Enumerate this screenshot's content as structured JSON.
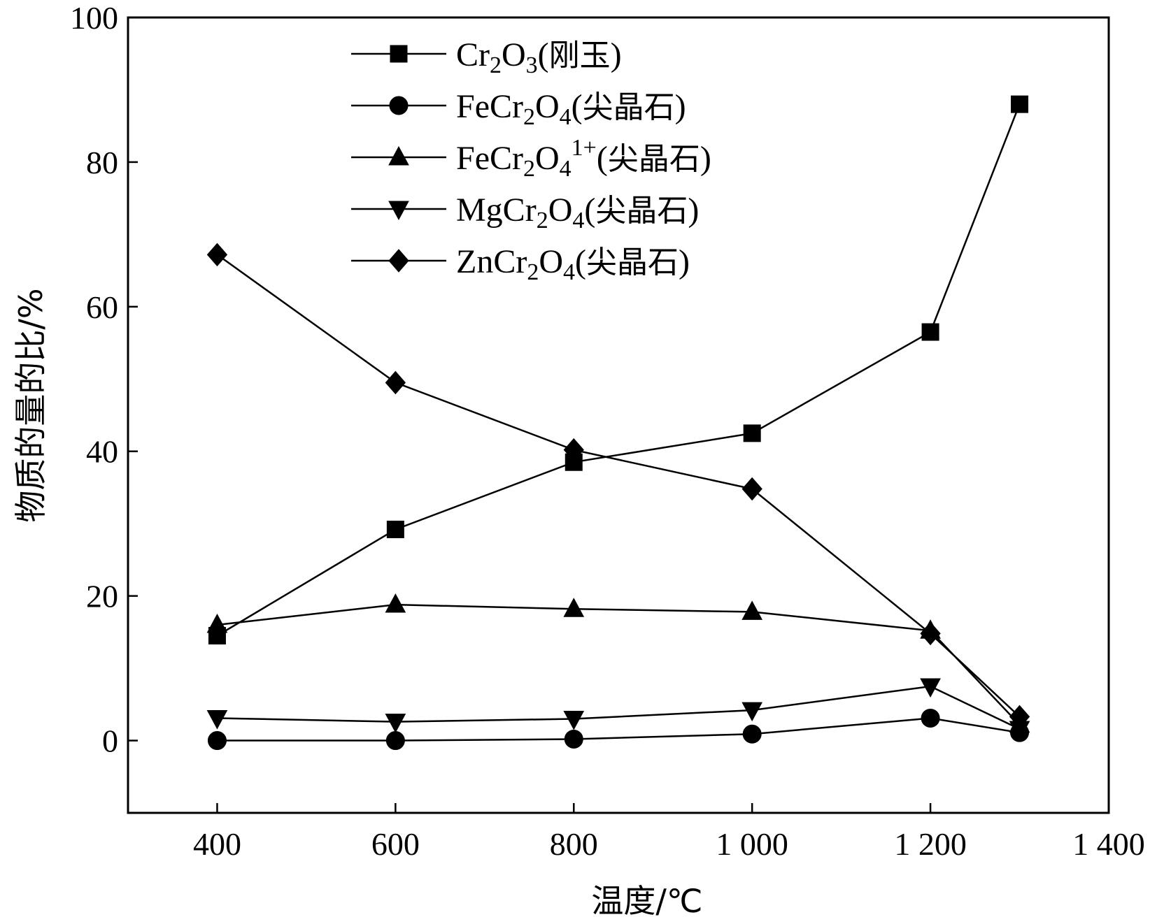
{
  "chart_data": {
    "type": "line",
    "xlabel": "温度/℃",
    "ylabel": "物质的量的比/%",
    "xlim": [
      300,
      1400
    ],
    "ylim": [
      -10,
      100
    ],
    "xticks": [
      400,
      600,
      800,
      1000,
      1200,
      1400
    ],
    "xtick_labels": [
      "400",
      "600",
      "800",
      "1 000",
      "1 200",
      "1 400"
    ],
    "yticks": [
      0,
      20,
      40,
      60,
      80,
      100
    ],
    "ytick_labels": [
      "0",
      "20",
      "40",
      "60",
      "80",
      "100"
    ],
    "grid": false,
    "legend_position": "top-center",
    "x": [
      400,
      600,
      800,
      1000,
      1200,
      1300
    ],
    "series": [
      {
        "name": "Cr2O3(刚玉)",
        "legend_parts": [
          [
            "Cr",
            "n"
          ],
          [
            "2",
            "sub"
          ],
          [
            "O",
            "n"
          ],
          [
            "3",
            "sub"
          ],
          [
            "(",
            "n"
          ],
          [
            "刚玉",
            "cjk"
          ],
          [
            ")",
            "n"
          ]
        ],
        "marker": "square",
        "values": [
          14.5,
          29.2,
          38.5,
          42.5,
          56.5,
          88
        ]
      },
      {
        "name": "FeCr2O4(尖晶石)",
        "legend_parts": [
          [
            "FeCr",
            "n"
          ],
          [
            "2",
            "sub"
          ],
          [
            "O",
            "n"
          ],
          [
            "4",
            "sub"
          ],
          [
            "(",
            "n"
          ],
          [
            "尖晶石",
            "cjk"
          ],
          [
            ")",
            "n"
          ]
        ],
        "marker": "circle",
        "values": [
          0,
          0,
          0.2,
          0.9,
          3.1,
          1.1
        ]
      },
      {
        "name": "FeCr2O41+(尖晶石)",
        "legend_parts": [
          [
            "FeCr",
            "n"
          ],
          [
            "2",
            "sub"
          ],
          [
            "O",
            "n"
          ],
          [
            "4",
            "sub"
          ],
          [
            "1+",
            "sup"
          ],
          [
            "(",
            "n"
          ],
          [
            "尖晶石",
            "cjk"
          ],
          [
            ")",
            "n"
          ]
        ],
        "marker": "triangle-up",
        "values": [
          16,
          18.8,
          18.2,
          17.8,
          15.2,
          2.2
        ]
      },
      {
        "name": "MgCr2O4(尖晶石)",
        "legend_parts": [
          [
            "MgCr",
            "n"
          ],
          [
            "2",
            "sub"
          ],
          [
            "O",
            "n"
          ],
          [
            "4",
            "sub"
          ],
          [
            "(",
            "n"
          ],
          [
            "尖晶石",
            "cjk"
          ],
          [
            ")",
            "n"
          ]
        ],
        "marker": "triangle-down",
        "values": [
          3.1,
          2.6,
          3.0,
          4.2,
          7.5,
          1.6
        ]
      },
      {
        "name": "ZnCr2O4(尖晶石)",
        "legend_parts": [
          [
            "ZnCr",
            "n"
          ],
          [
            "2",
            "sub"
          ],
          [
            "O",
            "n"
          ],
          [
            "4",
            "sub"
          ],
          [
            "(",
            "n"
          ],
          [
            "尖晶石",
            "cjk"
          ],
          [
            ")",
            "n"
          ]
        ],
        "marker": "diamond",
        "values": [
          67.2,
          49.5,
          40.2,
          34.8,
          14.8,
          3.3
        ]
      }
    ]
  }
}
